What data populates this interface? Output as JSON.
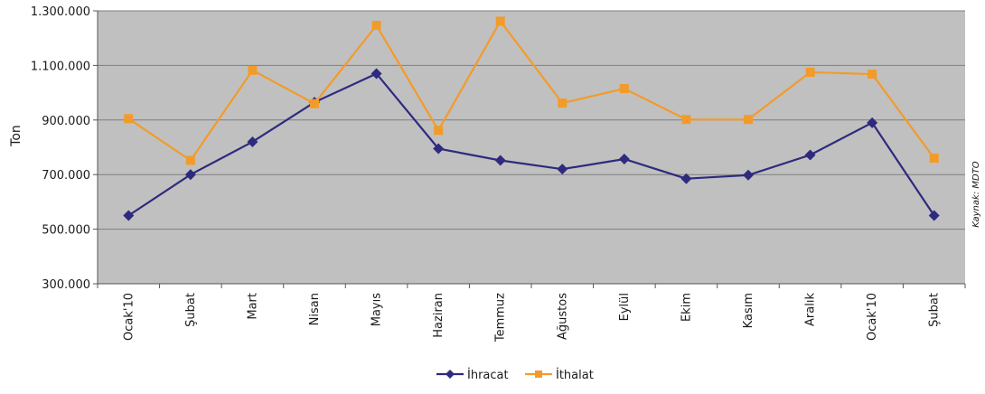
{
  "chart_data": {
    "type": "line",
    "title": "",
    "xlabel": "",
    "ylabel": "Ton",
    "source": "Kaynak: MDTO",
    "categories": [
      "Ocak'10",
      "Şubat",
      "Mart",
      "Nisan",
      "Mayıs",
      "Haziran",
      "Temmuz",
      "Ağustos",
      "Eylül",
      "Ekim",
      "Kasım",
      "Aralık",
      "Ocak'10",
      "Şubat"
    ],
    "ylim": [
      300000,
      1300000
    ],
    "yticks": [
      300000,
      500000,
      700000,
      900000,
      1100000,
      1300000
    ],
    "ytick_labels": [
      "300.000",
      "500.000",
      "700.000",
      "900.000",
      "1.100.000",
      "1.300.000"
    ],
    "grid": true,
    "legend_position": "bottom",
    "colors": {
      "plot_bg": "#c0c0c0",
      "gridline": "#7f7f7f",
      "ihracat": "#2e2a7e",
      "ithalat": "#f29b2b"
    },
    "series": [
      {
        "name": "İhracat",
        "marker": "diamond",
        "values": [
          550000,
          700000,
          820000,
          965000,
          1070000,
          795000,
          752000,
          720000,
          757000,
          685000,
          698000,
          772000,
          890000,
          550000
        ]
      },
      {
        "name": "İthalat",
        "marker": "square",
        "values": [
          905000,
          752000,
          1082000,
          960000,
          1247000,
          862000,
          1262000,
          962000,
          1015000,
          902000,
          902000,
          1075000,
          1068000,
          760000
        ]
      }
    ]
  }
}
